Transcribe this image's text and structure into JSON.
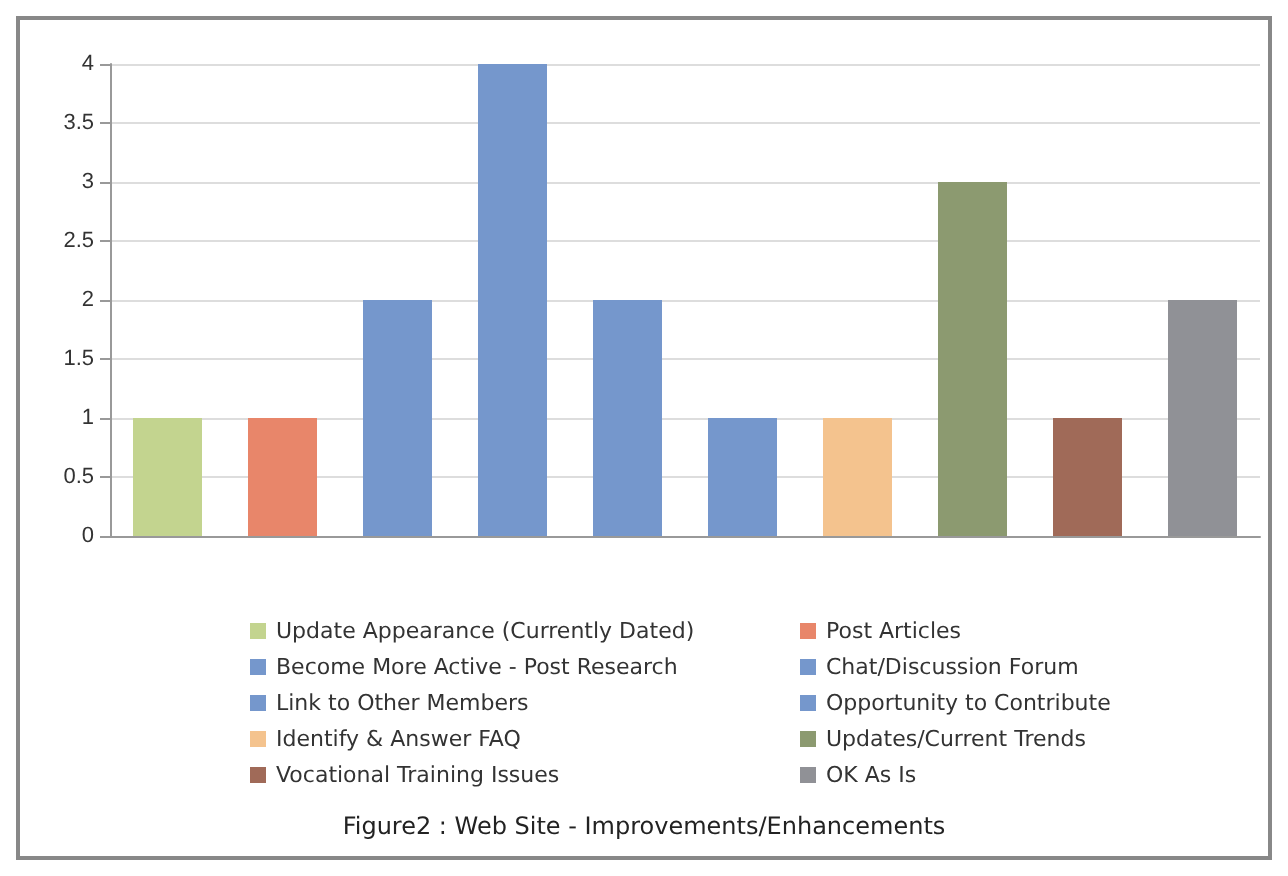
{
  "chart_data": {
    "type": "bar",
    "title": "Figure2 : Web Site - Improvements/Enhancements",
    "categories": [
      null,
      null,
      null,
      null,
      null,
      null,
      null,
      null,
      null,
      null
    ],
    "series": [
      {
        "name": "Update Appearance (Currently Dated)",
        "color": "#c3d48f",
        "values": [
          1,
          null,
          null,
          null,
          null,
          null,
          null,
          null,
          null,
          null
        ]
      },
      {
        "name": "Post Articles",
        "color": "#e8866a",
        "values": [
          null,
          1,
          null,
          null,
          null,
          null,
          null,
          null,
          null,
          null
        ]
      },
      {
        "name": "Become More Active - Post Research",
        "color": "#7597cc",
        "values": [
          null,
          null,
          2,
          null,
          null,
          null,
          null,
          null,
          null,
          null
        ]
      },
      {
        "name": "Chat/Discussion Forum",
        "color": "#7597cc",
        "values": [
          null,
          null,
          null,
          4,
          null,
          null,
          null,
          null,
          null,
          null
        ]
      },
      {
        "name": "Link to Other Members",
        "color": "#7597cc",
        "values": [
          null,
          null,
          null,
          null,
          2,
          null,
          null,
          null,
          null,
          null
        ]
      },
      {
        "name": "Opportunity to Contribute",
        "color": "#7597cc",
        "values": [
          null,
          null,
          null,
          null,
          null,
          1,
          null,
          null,
          null,
          null
        ]
      },
      {
        "name": "Identify & Answer FAQ",
        "color": "#f4c38e",
        "values": [
          null,
          null,
          null,
          null,
          null,
          null,
          1,
          null,
          null,
          null
        ]
      },
      {
        "name": "Updates/Current Trends",
        "color": "#8c9a70",
        "values": [
          null,
          null,
          null,
          null,
          null,
          null,
          null,
          3,
          null,
          null
        ]
      },
      {
        "name": "Vocational Training Issues",
        "color": "#a06a58",
        "values": [
          null,
          null,
          null,
          null,
          null,
          null,
          null,
          null,
          1,
          null
        ]
      },
      {
        "name": "OK As Is",
        "color": "#909196",
        "values": [
          null,
          null,
          null,
          null,
          null,
          null,
          null,
          null,
          null,
          2
        ]
      }
    ],
    "ylim": [
      0,
      4
    ],
    "yticks": [
      0,
      0.5,
      1,
      1.5,
      2,
      2.5,
      3,
      3.5,
      4
    ],
    "grid": "y",
    "legend": "bottom"
  }
}
